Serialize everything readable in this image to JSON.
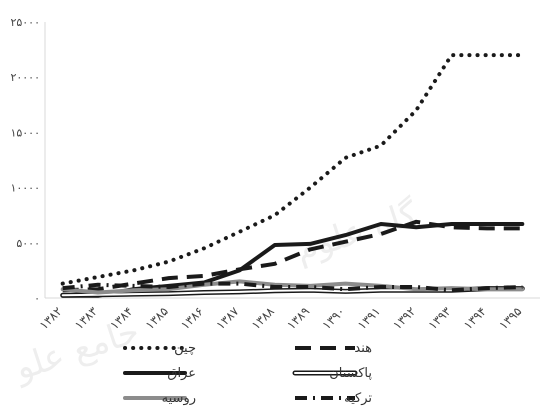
{
  "chart_data": {
    "type": "line",
    "categories": [
      "۱۳۸۲",
      "۱۳۸۳",
      "۱۳۸۴",
      "۱۳۸۵",
      "۱۳۸۶",
      "۱۳۸۷",
      "۱۳۸۸",
      "۱۳۸۹",
      "۱۳۹۰",
      "۱۳۹۱",
      "۱۳۹۲",
      "۱۳۹۳",
      "۱۳۹۴",
      "۱۳۹۵"
    ],
    "y_ticks": [
      "۰",
      "۵۰۰۰",
      "۱۰۰۰۰",
      "۱۵۰۰۰",
      "۲۰۰۰۰",
      "۲۵۰۰۰"
    ],
    "ylim": [
      0,
      25000
    ],
    "grid": false,
    "legend_position": "bottom",
    "series": [
      {
        "name": "چین",
        "color": "#1a1a1a",
        "style": "dotted",
        "values": [
          1300,
          1900,
          2500,
          3300,
          4500,
          6000,
          7500,
          10000,
          12700,
          13800,
          17000,
          22000,
          22000,
          22000
        ]
      },
      {
        "name": "هند",
        "color": "#1a1a1a",
        "style": "dashed",
        "values": [
          700,
          800,
          1300,
          1800,
          2000,
          2600,
          3100,
          4400,
          5100,
          5800,
          6900,
          6400,
          6300,
          6300
        ]
      },
      {
        "name": "عراق",
        "color": "#1a1a1a",
        "style": "solid",
        "values": [
          200,
          200,
          800,
          1100,
          1400,
          2500,
          4800,
          4900,
          5700,
          6700,
          6400,
          6700,
          6700,
          6700
        ]
      },
      {
        "name": "پاکستان",
        "color": "#1a1a1a",
        "style": "hollow",
        "values": [
          250,
          300,
          350,
          400,
          500,
          550,
          650,
          700,
          600,
          700,
          700,
          700,
          850,
          850
        ]
      },
      {
        "name": "روسیه",
        "color": "#8c8c8c",
        "style": "solid",
        "values": [
          800,
          500,
          700,
          800,
          1200,
          1500,
          1200,
          1100,
          1300,
          1100,
          800,
          900,
          800,
          800
        ]
      },
      {
        "name": "ترکیه",
        "color": "#1a1a1a",
        "style": "dashdot",
        "values": [
          900,
          1200,
          1100,
          1000,
          1300,
          1300,
          1000,
          1000,
          800,
          1000,
          1000,
          700,
          900,
          1000
        ]
      }
    ]
  }
}
